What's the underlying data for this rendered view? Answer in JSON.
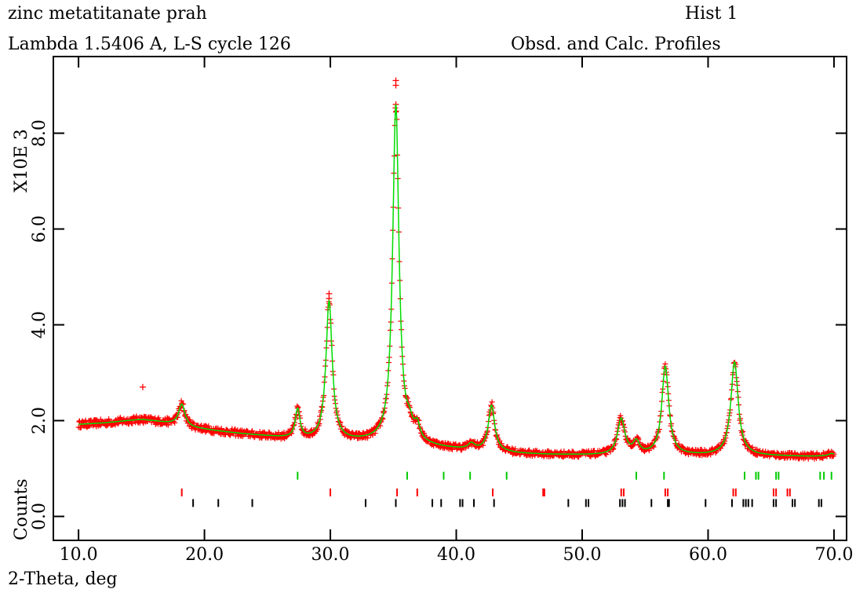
{
  "header": {
    "title": "zinc metatitanate prah",
    "subtitle": "Lambda 1.5406 A, L-S cycle  126",
    "hist_label": "Hist  1",
    "plot_label": "Obsd. and Calc. Profiles"
  },
  "colors": {
    "observed": "#ff0000",
    "calculated": "#00dd00",
    "reflections_phase1": "#00cc00",
    "reflections_phase2": "#ff0000",
    "reflections_phase3": "#000000",
    "axis": "#000000",
    "background": "#ffffff"
  },
  "chart_data": {
    "type": "line",
    "title": "zinc metatitanate prah",
    "xlabel": "2-Theta, deg",
    "ylabel": "Counts",
    "y_multiplier_label": "X10E  3",
    "xlim": [
      8.0,
      71.0
    ],
    "ylim": [
      -0.5,
      9.6
    ],
    "xticks": [
      10,
      20,
      30,
      40,
      50,
      60,
      70
    ],
    "xtick_labels": [
      "10.0",
      "20.0",
      "30.0",
      "40.0",
      "50.0",
      "60.0",
      "70.0"
    ],
    "yticks": [
      0,
      2,
      4,
      6,
      8
    ],
    "ytick_labels": [
      "0.0",
      "2.0",
      "4.0",
      "6.0",
      "8.0"
    ],
    "grid": false,
    "legend": "none",
    "background_points": [
      [
        10,
        1.92
      ],
      [
        12,
        1.95
      ],
      [
        14,
        2.0
      ],
      [
        15,
        2.02
      ],
      [
        16,
        1.99
      ],
      [
        17.5,
        1.93
      ],
      [
        19,
        1.85
      ],
      [
        21,
        1.78
      ],
      [
        23,
        1.72
      ],
      [
        25,
        1.67
      ],
      [
        27,
        1.62
      ],
      [
        29,
        1.58
      ],
      [
        31,
        1.56
      ],
      [
        33,
        1.55
      ],
      [
        35,
        1.52
      ],
      [
        37,
        1.48
      ],
      [
        39,
        1.42
      ],
      [
        41,
        1.38
      ],
      [
        43,
        1.35
      ],
      [
        45,
        1.31
      ],
      [
        47,
        1.29
      ],
      [
        50,
        1.28
      ],
      [
        53,
        1.27
      ],
      [
        56,
        1.27
      ],
      [
        59,
        1.27
      ],
      [
        62,
        1.27
      ],
      [
        65,
        1.26
      ],
      [
        68,
        1.25
      ],
      [
        70,
        1.26
      ]
    ],
    "peaks": [
      {
        "x": 18.2,
        "height": 0.45,
        "width": 0.3
      },
      {
        "x": 27.4,
        "height": 0.6,
        "width": 0.22
      },
      {
        "x": 29.9,
        "height": 2.9,
        "width": 0.3
      },
      {
        "x": 35.2,
        "height": 7.05,
        "width": 0.3
      },
      {
        "x": 36.3,
        "height": 0.25,
        "width": 0.3
      },
      {
        "x": 36.9,
        "height": 0.3,
        "width": 0.25
      },
      {
        "x": 41.2,
        "height": 0.12,
        "width": 0.3
      },
      {
        "x": 42.8,
        "height": 0.95,
        "width": 0.3
      },
      {
        "x": 53.1,
        "height": 0.75,
        "width": 0.35
      },
      {
        "x": 54.3,
        "height": 0.25,
        "width": 0.3
      },
      {
        "x": 56.6,
        "height": 1.85,
        "width": 0.33
      },
      {
        "x": 62.1,
        "height": 1.95,
        "width": 0.35
      },
      {
        "x": 69.8,
        "height": 0.05,
        "width": 0.3
      }
    ],
    "outlier_points": [
      [
        15.1,
        2.7
      ],
      [
        35.2,
        9.1
      ],
      [
        35.2,
        9.0
      ],
      [
        35.2,
        8.6
      ],
      [
        29.9,
        4.65
      ],
      [
        29.9,
        4.55
      ]
    ],
    "reflections": [
      {
        "name": "phase1",
        "y": 0.85,
        "positions": [
          27.4,
          36.1,
          39.0,
          41.1,
          44.0,
          54.3,
          56.5,
          62.9,
          63.8,
          64.0,
          65.4,
          65.6,
          68.9,
          69.2,
          69.8
        ]
      },
      {
        "name": "phase2",
        "y": 0.5,
        "positions": [
          18.2,
          30.0,
          35.3,
          36.9,
          42.9,
          46.9,
          47.0,
          53.1,
          53.3,
          56.6,
          56.8,
          62.0,
          62.2,
          65.2,
          65.4,
          66.3,
          66.5
        ]
      },
      {
        "name": "phase3",
        "y": 0.28,
        "positions": [
          19.1,
          21.1,
          23.8,
          32.8,
          35.2,
          38.1,
          38.8,
          40.3,
          40.5,
          41.4,
          43.0,
          48.9,
          50.3,
          50.5,
          53.0,
          53.2,
          53.4,
          55.5,
          56.8,
          56.9,
          59.8,
          61.9,
          62.8,
          63.0,
          63.2,
          63.5,
          65.2,
          65.4,
          66.7,
          66.9,
          68.8,
          69.0
        ]
      }
    ]
  }
}
